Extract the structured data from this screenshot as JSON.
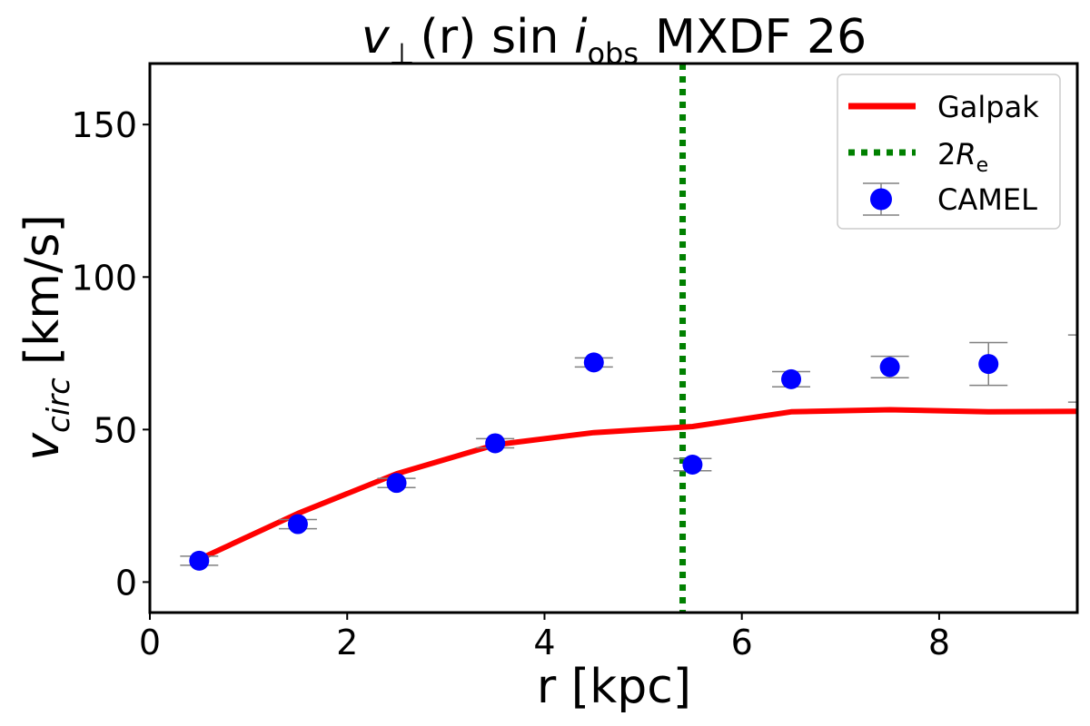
{
  "chart_data": {
    "type": "line",
    "title_math": "v",
    "title_sub_perp": "⊥",
    "title_math2": "(r) sin ",
    "title_math3": "i",
    "title_sub_obs": "obs",
    "title_name": "MXDF 26",
    "xlabel": "r [kpc]",
    "ylabel_main": "v",
    "ylabel_sub": "circ",
    "ylabel_unit": "[km/s]",
    "xlim": [
      0,
      9.4
    ],
    "ylim": [
      -10,
      170
    ],
    "xticks": [
      0,
      2,
      4,
      6,
      8
    ],
    "xtick_labels": [
      "0",
      "2",
      "4",
      "6",
      "8"
    ],
    "yticks": [
      0,
      50,
      100,
      150
    ],
    "ytick_labels": [
      "0",
      "50",
      "100",
      "150"
    ],
    "series": [
      {
        "name": "Galpak",
        "kind": "line",
        "color": "#ff0000",
        "x": [
          0.5,
          1.5,
          2.5,
          3.5,
          4.5,
          5.5,
          6.5,
          7.5,
          8.5,
          9.5
        ],
        "y": [
          7.5,
          22.5,
          35.5,
          45.0,
          49.0,
          51.0,
          55.8,
          56.5,
          55.8,
          56.0
        ]
      },
      {
        "name": "CAMEL",
        "kind": "errorbar",
        "color": "#0000ff",
        "errcolor": "#808080",
        "x": [
          0.5,
          1.5,
          2.5,
          3.5,
          4.5,
          5.5,
          6.5,
          7.5,
          8.5,
          9.5
        ],
        "y": [
          7,
          19,
          32.5,
          45.5,
          72,
          38.5,
          66.5,
          70.5,
          71.5,
          70
        ],
        "yerr": [
          1.5,
          1.5,
          1.5,
          1.5,
          1.5,
          2.0,
          2.5,
          3.5,
          7.0,
          11.0
        ]
      }
    ],
    "vline": {
      "name": "2R_e",
      "x": 5.4,
      "color": "#008000"
    },
    "legend": {
      "position": "top-right",
      "galpak_label": "Galpak",
      "re_prefix": "2",
      "re_main": "R",
      "re_sub": "e",
      "camel_label": "CAMEL"
    }
  }
}
